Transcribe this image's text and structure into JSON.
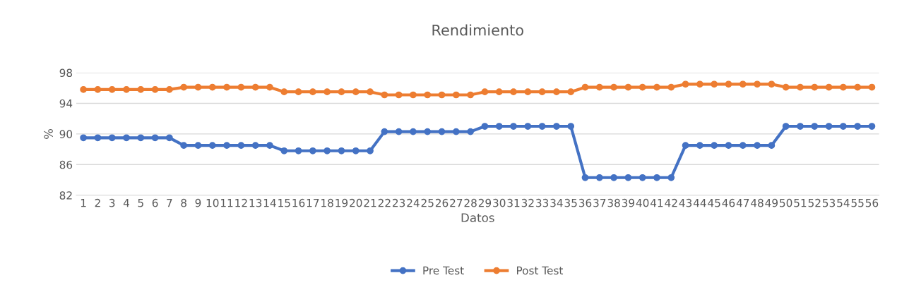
{
  "chart_data": {
    "type": "line",
    "title": "Rendimiento",
    "xlabel": "Datos",
    "ylabel": "%",
    "categories": [
      "1",
      "2",
      "3",
      "4",
      "5",
      "6",
      "7",
      "8",
      "9",
      "10",
      "11",
      "12",
      "13",
      "14",
      "15",
      "16",
      "17",
      "18",
      "19",
      "20",
      "21",
      "22",
      "23",
      "24",
      "25",
      "26",
      "27",
      "28",
      "29",
      "30",
      "31",
      "32",
      "33",
      "34",
      "35",
      "36",
      "37",
      "38",
      "39",
      "40",
      "41",
      "42",
      "43",
      "44",
      "45",
      "46",
      "47",
      "48",
      "49",
      "50",
      "51",
      "52",
      "53",
      "54",
      "55",
      "56"
    ],
    "series": [
      {
        "name": "Pre Test",
        "color": "#4472c4",
        "values": [
          89.5,
          89.5,
          89.5,
          89.5,
          89.5,
          89.5,
          89.5,
          88.5,
          88.5,
          88.5,
          88.5,
          88.5,
          88.5,
          88.5,
          87.8,
          87.8,
          87.8,
          87.8,
          87.8,
          87.8,
          87.8,
          90.3,
          90.3,
          90.3,
          90.3,
          90.3,
          90.3,
          90.3,
          91,
          91,
          91,
          91,
          91,
          91,
          91,
          84.3,
          84.3,
          84.3,
          84.3,
          84.3,
          84.3,
          84.3,
          88.5,
          88.5,
          88.5,
          88.5,
          88.5,
          88.5,
          88.5,
          91,
          91,
          91,
          91,
          91,
          91,
          91
        ]
      },
      {
        "name": "Post Test",
        "color": "#ed7d31",
        "values": [
          95.8,
          95.8,
          95.8,
          95.8,
          95.8,
          95.8,
          95.8,
          96.1,
          96.1,
          96.1,
          96.1,
          96.1,
          96.1,
          96.1,
          95.5,
          95.5,
          95.5,
          95.5,
          95.5,
          95.5,
          95.5,
          95.1,
          95.1,
          95.1,
          95.1,
          95.1,
          95.1,
          95.1,
          95.5,
          95.5,
          95.5,
          95.5,
          95.5,
          95.5,
          95.5,
          96.1,
          96.1,
          96.1,
          96.1,
          96.1,
          96.1,
          96.1,
          96.5,
          96.5,
          96.5,
          96.5,
          96.5,
          96.5,
          96.5,
          96.1,
          96.1,
          96.1,
          96.1,
          96.1,
          96.1,
          96.1
        ]
      }
    ],
    "ylim": [
      82,
      98
    ],
    "yticks": [
      82,
      86,
      90,
      94,
      98
    ],
    "grid": "y",
    "legend": "bottom",
    "marker": "circle",
    "line_style": "solid"
  }
}
